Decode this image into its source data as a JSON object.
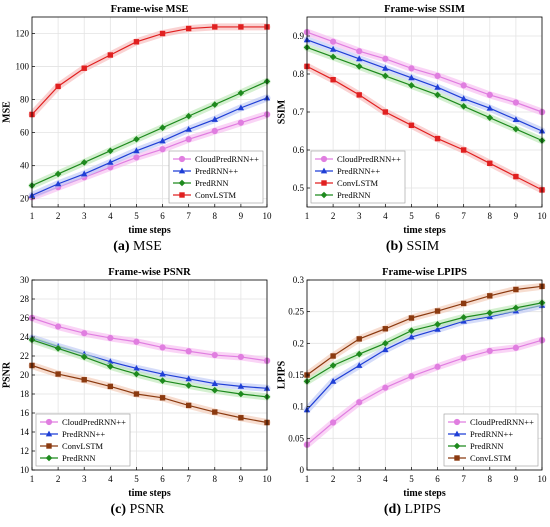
{
  "colors": {
    "CloudPredRNN++": "#e07ee0",
    "PredRNN++": "#1f3fd6",
    "ConvLSTM": "#e02020",
    "ConvLSTM_brown": "#8b3a10",
    "PredRNN": "#1e8a1e",
    "grid": "#e3e3e3",
    "glow_pink": "#f6b8f0",
    "glow_blue": "#b9c5f5",
    "glow_red": "#f6b4b4",
    "glow_brown": "#f2c6b0",
    "glow_green": "#b8e6b0"
  },
  "chart_data": [
    {
      "type": "line",
      "title": "Frame-wise MSE",
      "xlabel": "time steps",
      "ylabel": "MSE",
      "caption_tag": "(a)",
      "caption_text": "MSE",
      "x": [
        1,
        2,
        3,
        4,
        5,
        6,
        7,
        8,
        9,
        10
      ],
      "xlim": [
        1,
        10
      ],
      "ylim": [
        15,
        130
      ],
      "yticks": [
        20,
        40,
        60,
        80,
        100,
        120
      ],
      "grid": true,
      "legend_position": "bottom-right",
      "series": [
        {
          "name": "CloudPredRNN++",
          "color_key": "CloudPredRNN++",
          "marker": "circle",
          "values": [
            21,
            27,
            33,
            39,
            45,
            50,
            56,
            61,
            66,
            71
          ]
        },
        {
          "name": "PredRNN++",
          "color_key": "PredRNN++",
          "marker": "triangle",
          "values": [
            22,
            29,
            35,
            42,
            49,
            55,
            62,
            68,
            75,
            81
          ]
        },
        {
          "name": "PredRNN",
          "color_key": "PredRNN",
          "marker": "diamond",
          "values": [
            28,
            35,
            42,
            49,
            56,
            63,
            70,
            77,
            84,
            91
          ]
        },
        {
          "name": "ConvLSTM",
          "color_key": "ConvLSTM",
          "marker": "square",
          "values": [
            71,
            88,
            99,
            107,
            115,
            120,
            123,
            124,
            124,
            124
          ]
        }
      ]
    },
    {
      "type": "line",
      "title": "Frame-wise SSIM",
      "xlabel": "time steps",
      "ylabel": "SSIM",
      "caption_tag": "(b)",
      "caption_text": "SSIM",
      "x": [
        1,
        2,
        3,
        4,
        5,
        6,
        7,
        8,
        9,
        10
      ],
      "xlim": [
        1,
        10
      ],
      "ylim": [
        0.45,
        0.95
      ],
      "yticks": [
        0.5,
        0.6,
        0.7,
        0.8,
        0.9
      ],
      "grid": true,
      "legend_position": "bottom-left",
      "series": [
        {
          "name": "CloudPredRNN++",
          "color_key": "CloudPredRNN++",
          "marker": "circle",
          "values": [
            0.91,
            0.885,
            0.86,
            0.84,
            0.815,
            0.795,
            0.77,
            0.745,
            0.725,
            0.7
          ]
        },
        {
          "name": "PredRNN++",
          "color_key": "PredRNN++",
          "marker": "triangle",
          "values": [
            0.89,
            0.865,
            0.84,
            0.815,
            0.79,
            0.765,
            0.735,
            0.71,
            0.68,
            0.65
          ]
        },
        {
          "name": "ConvLSTM",
          "color_key": "ConvLSTM",
          "marker": "square",
          "values": [
            0.82,
            0.785,
            0.745,
            0.7,
            0.665,
            0.63,
            0.6,
            0.565,
            0.53,
            0.495
          ]
        },
        {
          "name": "PredRNN",
          "color_key": "PredRNN",
          "marker": "diamond",
          "values": [
            0.87,
            0.845,
            0.82,
            0.795,
            0.77,
            0.745,
            0.715,
            0.685,
            0.655,
            0.625
          ]
        }
      ]
    },
    {
      "type": "line",
      "title": "Frame-wise PSNR",
      "xlabel": "time steps",
      "ylabel": "PSNR",
      "caption_tag": "(c)",
      "caption_text": "PSNR",
      "x": [
        1,
        2,
        3,
        4,
        5,
        6,
        7,
        8,
        9,
        10
      ],
      "xlim": [
        1,
        10
      ],
      "ylim": [
        10,
        30
      ],
      "yticks": [
        10,
        12,
        14,
        16,
        18,
        20,
        22,
        24,
        26,
        28,
        30
      ],
      "grid": true,
      "legend_position": "bottom-left",
      "series": [
        {
          "name": "CloudPredRNN++",
          "color_key": "CloudPredRNN++",
          "marker": "circle",
          "values": [
            26.0,
            25.1,
            24.4,
            23.9,
            23.5,
            22.9,
            22.5,
            22.1,
            21.9,
            21.5
          ]
        },
        {
          "name": "PredRNN++",
          "color_key": "PredRNN++",
          "marker": "triangle",
          "values": [
            23.9,
            23.0,
            22.2,
            21.4,
            20.7,
            20.1,
            19.6,
            19.1,
            18.8,
            18.6
          ]
        },
        {
          "name": "ConvLSTM",
          "color_key": "ConvLSTM_brown",
          "marker": "square",
          "values": [
            21.0,
            20.1,
            19.5,
            18.8,
            18.0,
            17.6,
            16.8,
            16.1,
            15.5,
            15.0
          ]
        },
        {
          "name": "PredRNN",
          "color_key": "PredRNN",
          "marker": "diamond",
          "values": [
            23.7,
            22.8,
            21.9,
            20.9,
            20.1,
            19.4,
            18.9,
            18.4,
            18.0,
            17.7
          ]
        }
      ]
    },
    {
      "type": "line",
      "title": "Frame-wise LPIPS",
      "xlabel": "time steps",
      "ylabel": "LPIPS",
      "caption_tag": "(d)",
      "caption_text": "LPIPS",
      "x": [
        1,
        2,
        3,
        4,
        5,
        6,
        7,
        8,
        9,
        10
      ],
      "xlim": [
        1,
        10
      ],
      "ylim": [
        0,
        0.3
      ],
      "yticks": [
        0,
        0.05,
        0.1,
        0.15,
        0.2,
        0.25,
        0.3
      ],
      "grid": true,
      "legend_position": "bottom-right",
      "series": [
        {
          "name": "CloudPredRNN++",
          "color_key": "CloudPredRNN++",
          "marker": "circle",
          "values": [
            0.04,
            0.075,
            0.107,
            0.13,
            0.148,
            0.163,
            0.177,
            0.188,
            0.193,
            0.205
          ]
        },
        {
          "name": "PredRNN++",
          "color_key": "PredRNN++",
          "marker": "triangle",
          "values": [
            0.095,
            0.14,
            0.165,
            0.19,
            0.21,
            0.222,
            0.235,
            0.242,
            0.251,
            0.26
          ]
        },
        {
          "name": "PredRNN",
          "color_key": "PredRNN",
          "marker": "diamond",
          "values": [
            0.14,
            0.165,
            0.183,
            0.2,
            0.22,
            0.23,
            0.241,
            0.248,
            0.256,
            0.264
          ]
        },
        {
          "name": "ConvLSTM",
          "color_key": "ConvLSTM_brown",
          "marker": "square",
          "values": [
            0.15,
            0.18,
            0.207,
            0.223,
            0.24,
            0.251,
            0.263,
            0.275,
            0.285,
            0.29
          ]
        }
      ]
    }
  ]
}
